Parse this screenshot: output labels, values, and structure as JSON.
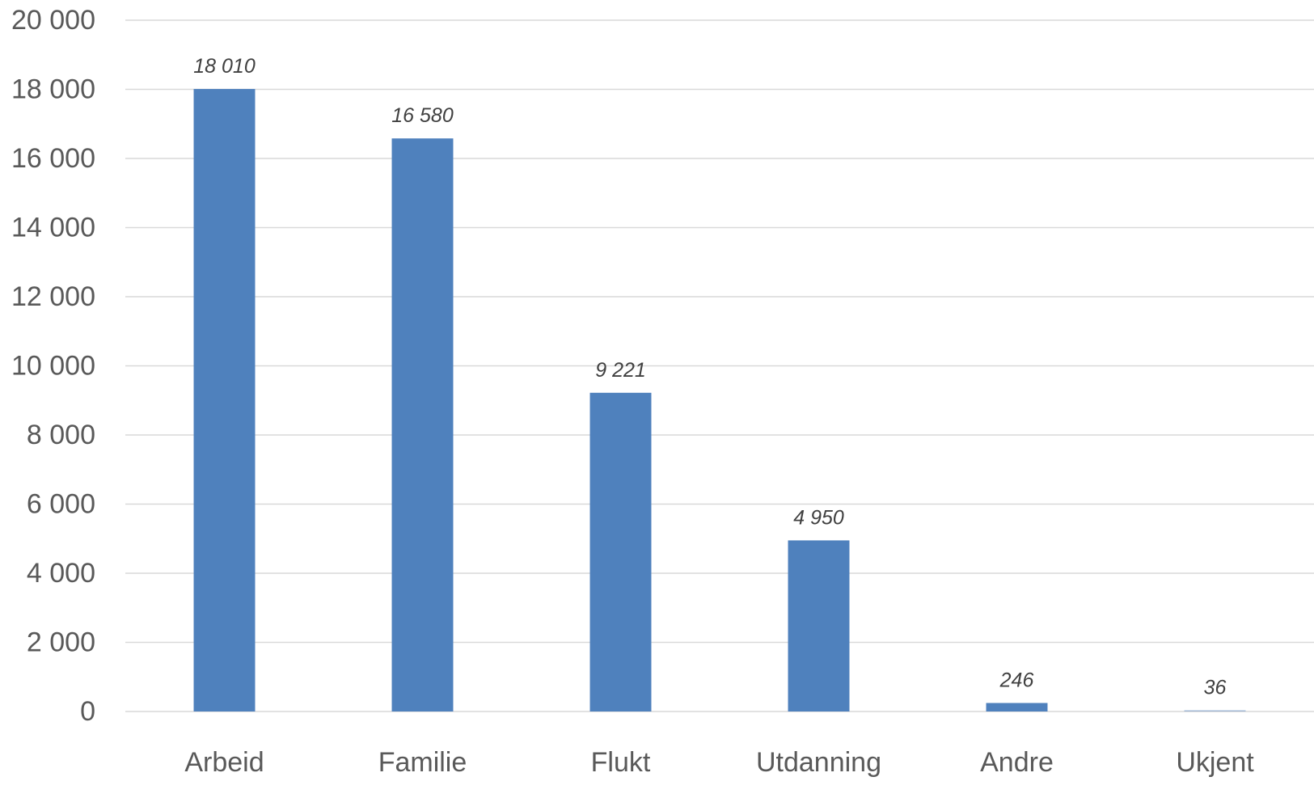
{
  "chart_data": {
    "type": "bar",
    "title": "",
    "xlabel": "",
    "ylabel": "",
    "categories": [
      "Arbeid",
      "Familie",
      "Flukt",
      "Utdanning",
      "Andre",
      "Ukjent"
    ],
    "values": [
      18010,
      16580,
      9221,
      4950,
      246,
      36
    ],
    "value_labels": [
      "18 010",
      "16 580",
      "9 221",
      "4 950",
      "246",
      "36"
    ],
    "ylim": [
      0,
      20000
    ],
    "yticks": [
      0,
      2000,
      4000,
      6000,
      8000,
      10000,
      12000,
      14000,
      16000,
      18000,
      20000
    ],
    "ytick_labels": [
      "0",
      "2 000",
      "4 000",
      "6 000",
      "8 000",
      "10 000",
      "12 000",
      "14 000",
      "16 000",
      "18 000",
      "20 000"
    ],
    "grid": true,
    "legend": "none",
    "bar_color": "#4f81bd"
  }
}
